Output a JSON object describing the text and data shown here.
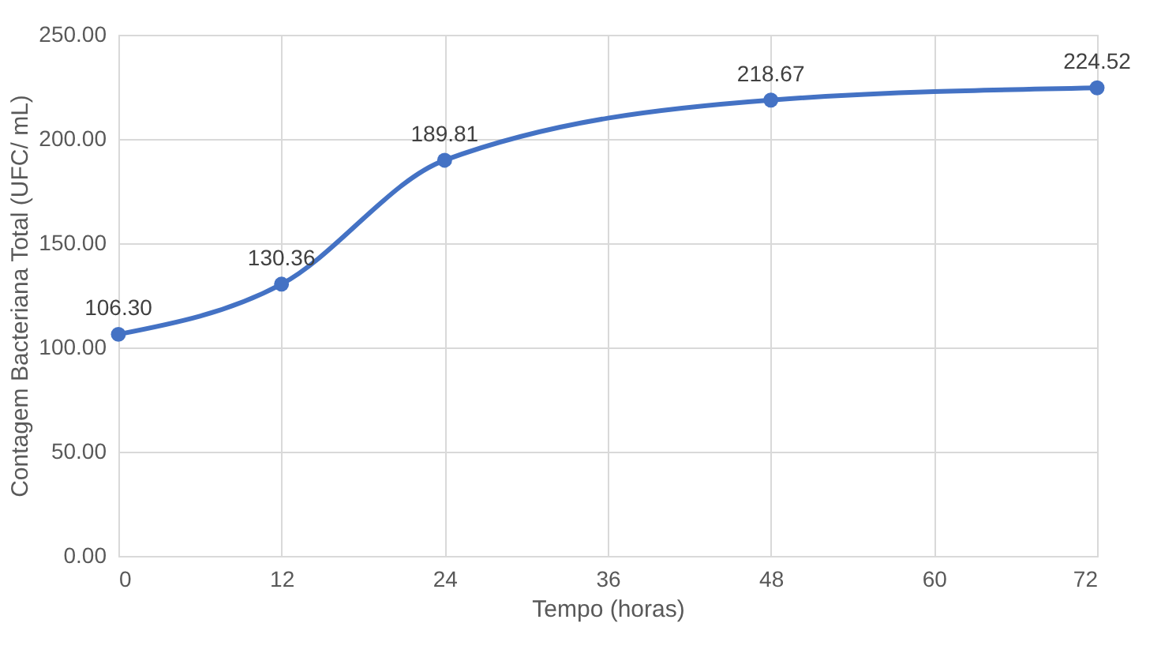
{
  "chart_data": {
    "type": "line",
    "xlabel": "Tempo (horas)",
    "ylabel": "Contagem Bacteriana Total (UFC/ mL)",
    "x": [
      0,
      12,
      24,
      48,
      72
    ],
    "series": [
      {
        "color": "#4472c4",
        "values": [
          106.3,
          130.36,
          189.81,
          218.67,
          224.52
        ],
        "value_labels": [
          "106.30",
          "130.36",
          "189.81",
          "218.67",
          "224.52"
        ]
      }
    ],
    "xlim": [
      0,
      72
    ],
    "xticks": [
      0,
      12,
      24,
      36,
      48,
      60,
      72
    ],
    "ylim": [
      0,
      250
    ],
    "yticks": [
      {
        "value": 0,
        "label": "0.00"
      },
      {
        "value": 50,
        "label": "50.00"
      },
      {
        "value": 100,
        "label": "100.00"
      },
      {
        "value": 150,
        "label": "150.00"
      },
      {
        "value": 200,
        "label": "200.00"
      },
      {
        "value": 250,
        "label": "250.00"
      }
    ],
    "grid": true,
    "marker": "circle",
    "line_style": "solid"
  }
}
